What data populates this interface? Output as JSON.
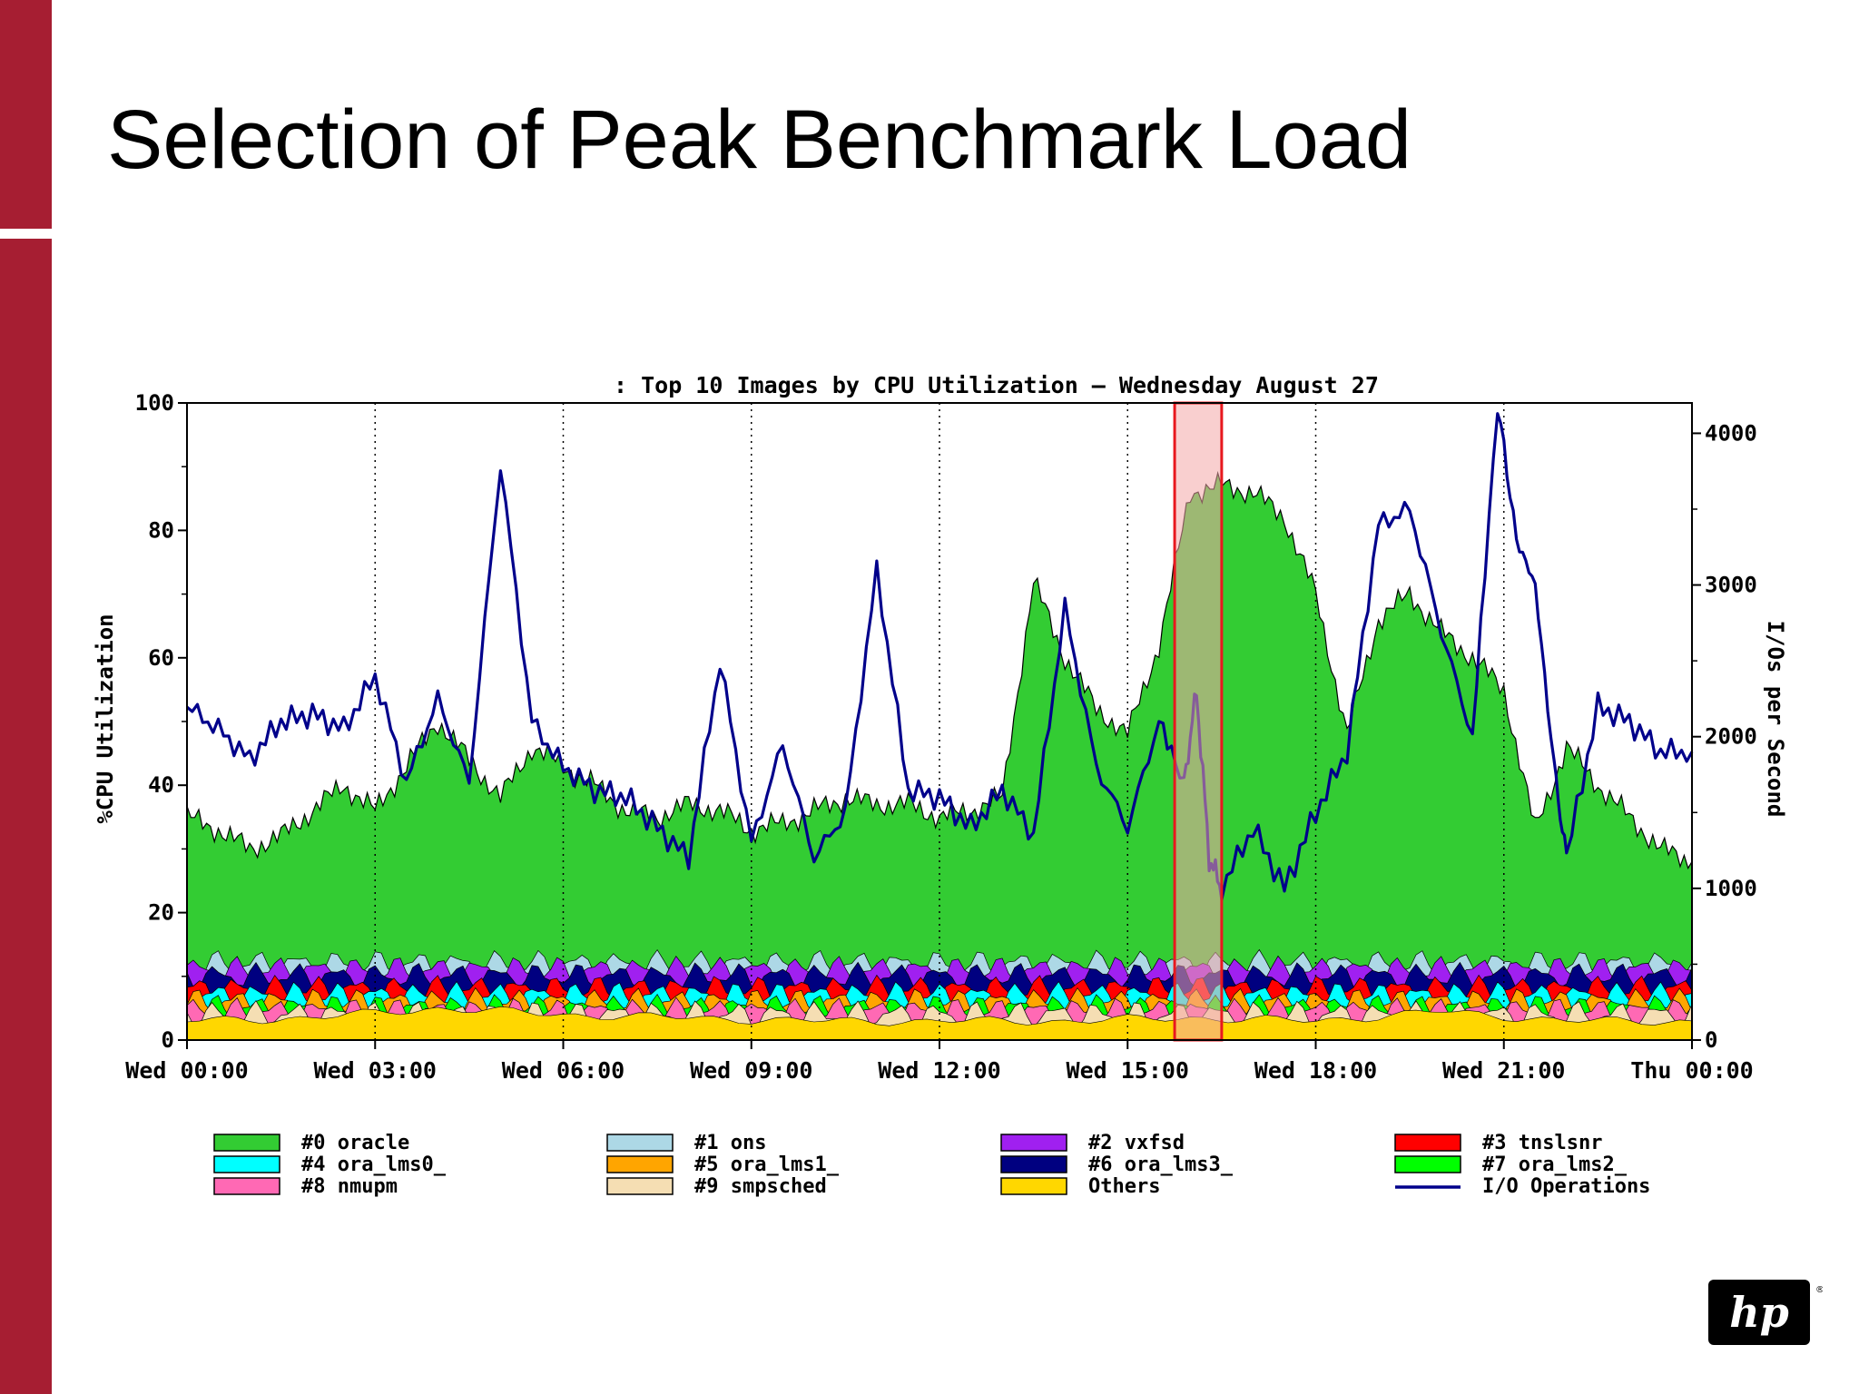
{
  "slide": {
    "title": "Selection of Peak Benchmark Load"
  },
  "colors": {
    "accent_bar": "#a61e32",
    "highlight_fill": "#f4a8a8",
    "highlight_border": "#e8181e"
  },
  "logo": {
    "icon": "hp-logo-icon",
    "text": "hp"
  },
  "chart_data": {
    "type": "area",
    "title": ": Top 10 Images by CPU Utilization – Wednesday August 27",
    "ylabel": "%CPU Utilization",
    "y2label": "I/Os per Second",
    "ylim": [
      0,
      100
    ],
    "y2lim": [
      0,
      4200
    ],
    "yticks": [
      "0",
      "20",
      "40",
      "60",
      "80",
      "100"
    ],
    "y2ticks": [
      "0",
      "1000",
      "2000",
      "3000",
      "4000"
    ],
    "xticks": [
      "Wed 00:00",
      "Wed 03:00",
      "Wed 06:00",
      "Wed 09:00",
      "Wed 12:00",
      "Wed 15:00",
      "Wed 18:00",
      "Wed 21:00",
      "Thu 00:00"
    ],
    "xrange_hours": [
      0,
      24
    ],
    "grid": "vertical-dotted",
    "legend_position": "bottom",
    "highlight_hours": [
      15.75,
      16.5
    ],
    "series": [
      {
        "name": "#0 oracle",
        "color": "#33cc33",
        "kind": "stacked-area-top",
        "points": [
          [
            0,
            35
          ],
          [
            0.5,
            33
          ],
          [
            1,
            30
          ],
          [
            1.5,
            32
          ],
          [
            2,
            36
          ],
          [
            2.5,
            40
          ],
          [
            3,
            36
          ],
          [
            3.5,
            43
          ],
          [
            4,
            50
          ],
          [
            4.5,
            44
          ],
          [
            5,
            38
          ],
          [
            5.5,
            46
          ],
          [
            6,
            43
          ],
          [
            6.5,
            40
          ],
          [
            7,
            36
          ],
          [
            7.5,
            35
          ],
          [
            8,
            37
          ],
          [
            8.5,
            36
          ],
          [
            9,
            33
          ],
          [
            9.5,
            34
          ],
          [
            10,
            36
          ],
          [
            10.5,
            38
          ],
          [
            11,
            37
          ],
          [
            11.5,
            37
          ],
          [
            12,
            35
          ],
          [
            12.5,
            36
          ],
          [
            13,
            38
          ],
          [
            13.5,
            72
          ],
          [
            14,
            60
          ],
          [
            14.5,
            52
          ],
          [
            15,
            48
          ],
          [
            15.5,
            62
          ],
          [
            16,
            86
          ],
          [
            16.5,
            87
          ],
          [
            17,
            86
          ],
          [
            17.5,
            82
          ],
          [
            18,
            70
          ],
          [
            18.5,
            48
          ],
          [
            19,
            66
          ],
          [
            19.5,
            70
          ],
          [
            20,
            64
          ],
          [
            20.5,
            60
          ],
          [
            21,
            55
          ],
          [
            21.5,
            33
          ],
          [
            22,
            46
          ],
          [
            22.5,
            40
          ],
          [
            23,
            35
          ],
          [
            23.5,
            30
          ],
          [
            24,
            28
          ]
        ]
      },
      {
        "name": "#1 ons",
        "color": "#add8e6",
        "kind": "stacked-band",
        "value": 12
      },
      {
        "name": "#2 vxfsd",
        "color": "#a020f0",
        "kind": "stacked-band",
        "value": 11
      },
      {
        "name": "#3 tnslsnr",
        "color": "#ff0000",
        "kind": "stacked-band",
        "value": 8
      },
      {
        "name": "#4 ora_lms0_",
        "color": "#00ffff",
        "kind": "stacked-band",
        "value": 7
      },
      {
        "name": "#5 ora_lms1_",
        "color": "#ffa500",
        "kind": "stacked-band",
        "value": 6
      },
      {
        "name": "#6 ora_lms3_",
        "color": "#000080",
        "kind": "stacked-band",
        "value": 10
      },
      {
        "name": "#7 ora_lms2_",
        "color": "#00ff00",
        "kind": "stacked-band",
        "value": 5
      },
      {
        "name": "#8 nmupm",
        "color": "#ff69b4",
        "kind": "stacked-band",
        "value": 4.5
      },
      {
        "name": "#9 smpsched",
        "color": "#f5deb3",
        "kind": "stacked-band",
        "value": 4
      },
      {
        "name": "Others",
        "color": "#ffd700",
        "kind": "stacked-area-base",
        "points": [
          [
            0,
            3
          ],
          [
            2,
            3.5
          ],
          [
            4,
            5
          ],
          [
            6,
            4
          ],
          [
            8,
            3.5
          ],
          [
            10,
            3
          ],
          [
            12,
            3
          ],
          [
            14,
            3
          ],
          [
            16,
            3.5
          ],
          [
            18,
            3
          ],
          [
            20,
            4.5
          ],
          [
            22,
            3
          ],
          [
            24,
            3
          ]
        ]
      },
      {
        "name": "I/O Operations",
        "color": "#00008b",
        "kind": "line-secondary-axis",
        "points": [
          [
            0,
            2200
          ],
          [
            0.5,
            2050
          ],
          [
            1,
            1850
          ],
          [
            1.5,
            2100
          ],
          [
            2,
            2150
          ],
          [
            2.5,
            2050
          ],
          [
            3,
            2400
          ],
          [
            3.5,
            1700
          ],
          [
            4,
            2250
          ],
          [
            4.5,
            1700
          ],
          [
            5,
            3800
          ],
          [
            5.5,
            2100
          ],
          [
            6,
            1800
          ],
          [
            6.5,
            1650
          ],
          [
            7,
            1600
          ],
          [
            7.5,
            1400
          ],
          [
            8,
            1200
          ],
          [
            8.5,
            2500
          ],
          [
            9,
            1300
          ],
          [
            9.5,
            1950
          ],
          [
            10,
            1200
          ],
          [
            10.5,
            1500
          ],
          [
            11,
            3100
          ],
          [
            11.5,
            1650
          ],
          [
            12,
            1600
          ],
          [
            12.5,
            1400
          ],
          [
            13,
            1650
          ],
          [
            13.5,
            1350
          ],
          [
            14,
            2850
          ],
          [
            14.5,
            1800
          ],
          [
            15,
            1400
          ],
          [
            15.5,
            2100
          ],
          [
            15.9,
            1700
          ],
          [
            16.1,
            2300
          ],
          [
            16.3,
            1200
          ],
          [
            16.5,
            1000
          ],
          [
            17,
            1400
          ],
          [
            17.5,
            1000
          ],
          [
            18,
            1500
          ],
          [
            18.5,
            1900
          ],
          [
            19,
            3400
          ],
          [
            19.5,
            3500
          ],
          [
            20,
            2700
          ],
          [
            20.5,
            2000
          ],
          [
            20.9,
            4200
          ],
          [
            21.2,
            3300
          ],
          [
            21.5,
            3000
          ],
          [
            21.8,
            1800
          ],
          [
            22,
            1200
          ],
          [
            22.5,
            2200
          ],
          [
            23,
            2100
          ],
          [
            23.5,
            1900
          ],
          [
            24,
            1900
          ]
        ]
      }
    ]
  }
}
